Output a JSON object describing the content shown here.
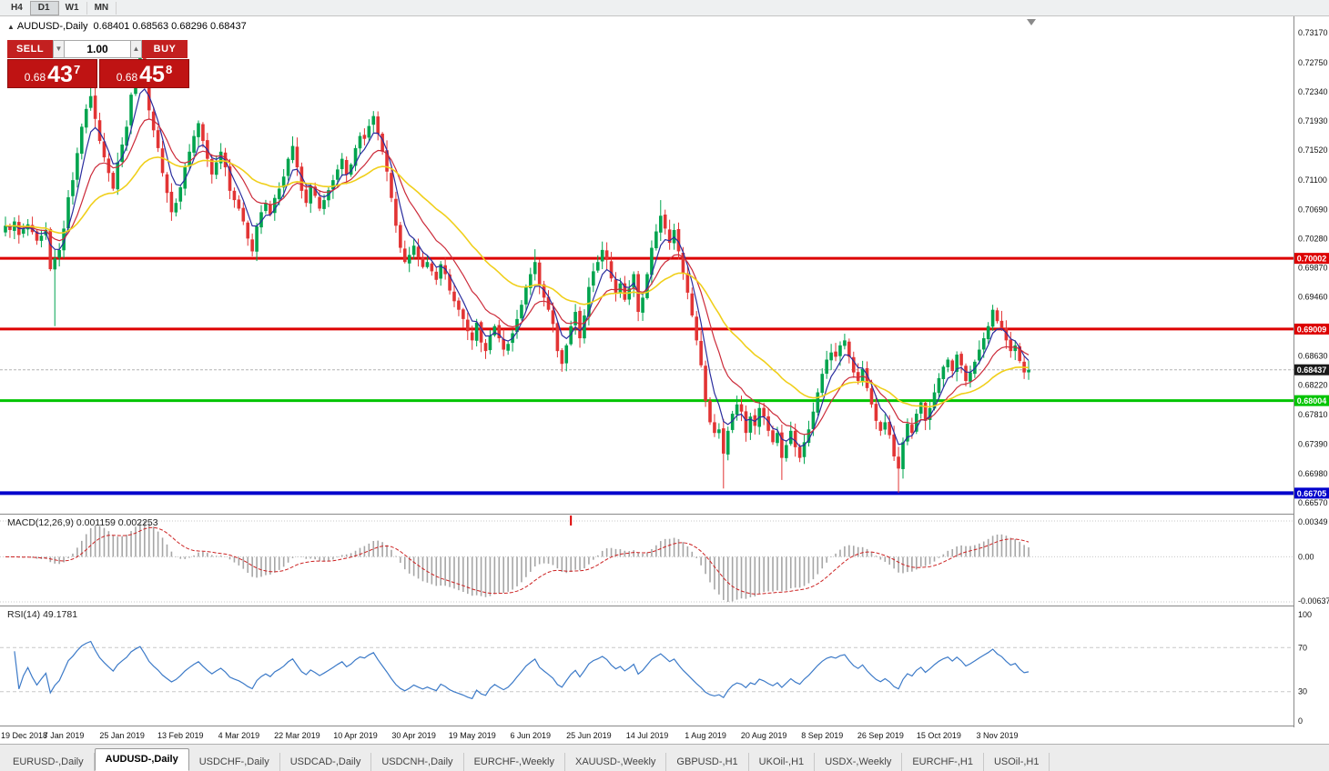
{
  "toolbar": {
    "timeframes": [
      {
        "label": "H4",
        "active": false
      },
      {
        "label": "D1",
        "active": true
      },
      {
        "label": "W1",
        "active": false
      },
      {
        "label": "MN",
        "active": false
      }
    ]
  },
  "chart": {
    "symbol_label": "AUDUSD-,Daily",
    "ohlc": "0.68401 0.68563 0.68296 0.68437",
    "price_scale": [
      "0.73170",
      "0.72750",
      "0.72340",
      "0.71930",
      "0.71520",
      "0.71100",
      "0.70690",
      "0.70280",
      "0.69870",
      "0.69460",
      "0.69040",
      "0.68630",
      "0.68220",
      "0.67810",
      "0.67390",
      "0.66980",
      "0.66570"
    ],
    "levels": [
      {
        "value": 0.70002,
        "label": "0.70002",
        "color": "#dd0000",
        "width": 3
      },
      {
        "value": 0.69009,
        "label": "0.69009",
        "color": "#dd0000",
        "width": 3
      },
      {
        "value": 0.68004,
        "label": "0.68004",
        "color": "#00c400",
        "width": 3
      },
      {
        "value": 0.66705,
        "label": "0.66705",
        "color": "#0000cc",
        "width": 4
      }
    ],
    "bid": {
      "value": 0.68437,
      "label": "0.68437"
    },
    "date_labels": [
      "19 Dec 2018",
      "7 Jan 2019",
      "25 Jan 2019",
      "13 Feb 2019",
      "4 Mar 2019",
      "22 Mar 2019",
      "10 Apr 2019",
      "30 Apr 2019",
      "19 May 2019",
      "6 Jun 2019",
      "25 Jun 2019",
      "14 Jul 2019",
      "1 Aug 2019",
      "20 Aug 2019",
      "8 Sep 2019",
      "26 Sep 2019",
      "15 Oct 2019",
      "3 Nov 2019"
    ],
    "annotations": {
      "macd_red_tick_index": 126
    }
  },
  "trade_panel": {
    "sell_label": "SELL",
    "buy_label": "BUY",
    "volume": "1.00",
    "sell_price": {
      "small": "0.68",
      "big": "43",
      "sup": "7"
    },
    "buy_price": {
      "small": "0.68",
      "big": "45",
      "sup": "8"
    }
  },
  "indicators": {
    "macd": {
      "label": "MACD(12,26,9) 0.001159 0.002253",
      "fast": 12,
      "slow": 26,
      "signal": 9,
      "scale": [
        "0.00349",
        "0.00",
        "-0.00637"
      ]
    },
    "rsi": {
      "label": "RSI(14) 49.1781",
      "period": 14,
      "levels": [
        70,
        30
      ],
      "scale": [
        "100",
        "70",
        "30",
        "0"
      ]
    }
  },
  "tabs": [
    {
      "label": "EURUSD-,Daily",
      "active": false
    },
    {
      "label": "AUDUSD-,Daily",
      "active": true
    },
    {
      "label": "USDCHF-,Daily",
      "active": false
    },
    {
      "label": "USDCAD-,Daily",
      "active": false
    },
    {
      "label": "USDCNH-,Daily",
      "active": false
    },
    {
      "label": "EURCHF-,Weekly",
      "active": false
    },
    {
      "label": "XAUUSD-,Weekly",
      "active": false
    },
    {
      "label": "GBPUSD-,H1",
      "active": false
    },
    {
      "label": "UKOil-,H1",
      "active": false
    },
    {
      "label": "USDX-,Weekly",
      "active": false
    },
    {
      "label": "EURCHF-,H1",
      "active": false
    },
    {
      "label": "USOil-,H1",
      "active": false
    }
  ],
  "chart_data": {
    "type": "candlestick",
    "symbol": "AUDUSD",
    "timeframe": "Daily",
    "last_ohlc": {
      "open": 0.68401,
      "high": 0.68563,
      "low": 0.68296,
      "close": 0.68437
    },
    "y_range": [
      0.6657,
      0.7317
    ],
    "closes": [
      0.7046,
      0.704,
      0.7052,
      0.7033,
      0.7041,
      0.7048,
      0.7037,
      0.7025,
      0.7032,
      0.704,
      0.6985,
      0.7,
      0.7012,
      0.7042,
      0.7086,
      0.711,
      0.7148,
      0.7185,
      0.721,
      0.7228,
      0.7196,
      0.7165,
      0.7142,
      0.712,
      0.7098,
      0.7135,
      0.716,
      0.7185,
      0.723,
      0.7258,
      0.7282,
      0.725,
      0.7208,
      0.718,
      0.7155,
      0.712,
      0.7092,
      0.7065,
      0.7078,
      0.71,
      0.7128,
      0.715,
      0.7172,
      0.719,
      0.7165,
      0.714,
      0.7118,
      0.7135,
      0.715,
      0.7128,
      0.7095,
      0.7082,
      0.707,
      0.7052,
      0.7028,
      0.701,
      0.7045,
      0.7065,
      0.7078,
      0.7062,
      0.7085,
      0.7098,
      0.7115,
      0.714,
      0.7158,
      0.7128,
      0.7095,
      0.7078,
      0.7102,
      0.7088,
      0.707,
      0.7082,
      0.7096,
      0.711,
      0.7125,
      0.714,
      0.7118,
      0.7132,
      0.7155,
      0.7172,
      0.7168,
      0.7186,
      0.72,
      0.7175,
      0.715,
      0.7122,
      0.7085,
      0.7046,
      0.7015,
      0.6995,
      0.7005,
      0.7018,
      0.7002,
      0.6988,
      0.6995,
      0.6982,
      0.697,
      0.6992,
      0.6978,
      0.6955,
      0.694,
      0.6928,
      0.6915,
      0.6898,
      0.6885,
      0.691,
      0.6882,
      0.687,
      0.6892,
      0.6905,
      0.6888,
      0.6872,
      0.688,
      0.6895,
      0.6915,
      0.6935,
      0.696,
      0.6978,
      0.6995,
      0.6962,
      0.6945,
      0.6928,
      0.6908,
      0.687,
      0.6852,
      0.6878,
      0.6905,
      0.6925,
      0.6888,
      0.692,
      0.696,
      0.6982,
      0.6995,
      0.7012,
      0.6998,
      0.6972,
      0.6952,
      0.6965,
      0.6942,
      0.6958,
      0.6978,
      0.6925,
      0.6945,
      0.6978,
      0.7015,
      0.7038,
      0.706,
      0.7042,
      0.7022,
      0.704,
      0.701,
      0.698,
      0.6952,
      0.692,
      0.6885,
      0.685,
      0.68,
      0.677,
      0.6755,
      0.676,
      0.6726,
      0.6758,
      0.6782,
      0.6795,
      0.6785,
      0.6755,
      0.6778,
      0.6765,
      0.679,
      0.6778,
      0.6758,
      0.6742,
      0.6755,
      0.672,
      0.6738,
      0.6758,
      0.6735,
      0.672,
      0.6742,
      0.676,
      0.6785,
      0.6812,
      0.6838,
      0.6858,
      0.6868,
      0.6862,
      0.6878,
      0.6885,
      0.6862,
      0.684,
      0.6828,
      0.6845,
      0.6818,
      0.6795,
      0.6772,
      0.6758,
      0.677,
      0.6752,
      0.6722,
      0.6705,
      0.6742,
      0.6768,
      0.6755,
      0.6782,
      0.6798,
      0.6772,
      0.679,
      0.6812,
      0.6832,
      0.6848,
      0.6858,
      0.6842,
      0.6865,
      0.685,
      0.6828,
      0.684,
      0.6855,
      0.6872,
      0.6888,
      0.6905,
      0.6928,
      0.6912,
      0.6902,
      0.6885,
      0.687,
      0.6878,
      0.6856,
      0.684,
      0.68437
    ],
    "wick_overrides": {
      "11": {
        "low": 0.6905
      },
      "19": {
        "high": 0.7241
      },
      "30": {
        "high": 0.7295
      },
      "55": {
        "low": 0.7003
      },
      "82": {
        "high": 0.7207
      },
      "118": {
        "high": 0.7013
      },
      "146": {
        "high": 0.7082
      },
      "160": {
        "low": 0.6677
      },
      "173": {
        "low": 0.6689
      },
      "199": {
        "low": 0.6671
      },
      "220": {
        "high": 0.6935
      },
      "228": {
        "open": 0.68401,
        "high": 0.68563,
        "low": 0.68296
      }
    },
    "mas": [
      {
        "period": 5,
        "color": "#2a2d9e",
        "width": 1.2
      },
      {
        "period": 13,
        "color": "#cc2b3a",
        "width": 1.2
      },
      {
        "period": 34,
        "color": "#f0cf1b",
        "width": 1.6
      }
    ],
    "colors": {
      "up": "#00a44e",
      "down": "#e23434",
      "macd_hist": "#a6a6a6",
      "macd_signal": "#cc2222",
      "rsi_line": "#3c7ac8"
    },
    "seed": 11
  }
}
